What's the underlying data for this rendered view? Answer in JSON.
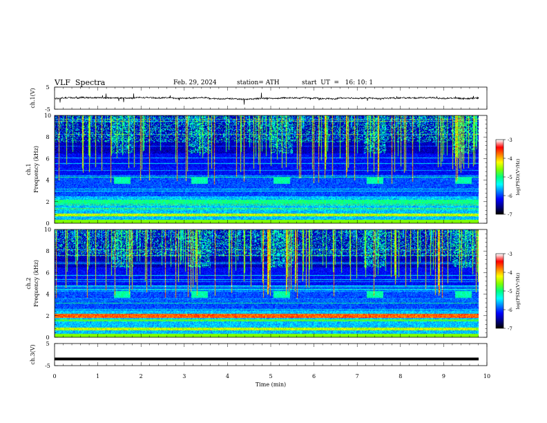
{
  "header": {
    "title": "VLF  Spectra",
    "date": "Feb. 29, 2024",
    "station": "station= ATH",
    "start_ut": "start  UT  =   16: 10: 1"
  },
  "colors": {
    "background": "#ffffff",
    "spectrogram_dark": "#00004a",
    "trace": "#000000",
    "colormap": [
      "#000000",
      "#00008a",
      "#0000ff",
      "#0080ff",
      "#00ffff",
      "#00ff80",
      "#80ff00",
      "#ffff00",
      "#ff8000",
      "#ff0000",
      "#ffffff"
    ]
  },
  "chart_data": [
    {
      "type": "line",
      "name": "ch1-waveform",
      "ylabel": "ch.1(V)",
      "ylim": [
        -5,
        5
      ],
      "yticks": [
        "5",
        "-5"
      ],
      "xlim": [
        0,
        10
      ],
      "description_values": {
        "baseline": 0,
        "noise_amplitude": 0.6,
        "spikes_to": [
          -2.5,
          2.5
        ]
      }
    },
    {
      "type": "heatmap",
      "name": "ch1-spectrogram",
      "ylabel_line1": "ch.1",
      "ylabel_line2": "Frequency (kHz)",
      "ylim": [
        0,
        10
      ],
      "yticks": [
        "0",
        "2",
        "4",
        "6",
        "8",
        "10"
      ],
      "xlim": [
        0,
        10
      ],
      "colorbar": {
        "label": "log(PSD)(V²/Hz)",
        "range": [
          -7,
          -3
        ],
        "ticks": [
          "-3",
          "-4",
          "-5",
          "-6",
          "-7"
        ]
      },
      "bursts_min": [
        1.55,
        3.35,
        5.25,
        7.4,
        9.45
      ],
      "burst_freq_khz": [
        3.7,
        4.3
      ]
    },
    {
      "type": "heatmap",
      "name": "ch2-spectrogram",
      "ylabel_line1": "ch.2",
      "ylabel_line2": "Frequency (kHz)",
      "ylim": [
        0,
        10
      ],
      "yticks": [
        "0",
        "2",
        "4",
        "6",
        "8",
        "10"
      ],
      "xlim": [
        0,
        10
      ],
      "colorbar": {
        "label": "log(PSD)(V²/Hz)",
        "range": [
          -7,
          -3
        ],
        "ticks": [
          "-3",
          "-4",
          "-5",
          "-6",
          "-7"
        ]
      },
      "bursts_min": [
        1.55,
        3.35,
        5.25,
        7.4,
        9.45
      ],
      "burst_freq_khz": [
        3.7,
        4.3
      ],
      "strong_band_khz": 2.0
    },
    {
      "type": "line",
      "name": "ch3-waveform",
      "ylabel": "ch.3(V)",
      "ylim": [
        -5,
        5
      ],
      "yticks": [
        "5",
        "-5"
      ],
      "xlim": [
        0,
        10
      ],
      "description_values": {
        "constant_level": -2
      }
    }
  ],
  "x_axis": {
    "label": "Time  (min)",
    "ticks": [
      "0",
      "1",
      "2",
      "3",
      "4",
      "5",
      "6",
      "7",
      "8",
      "9",
      "10"
    ]
  }
}
